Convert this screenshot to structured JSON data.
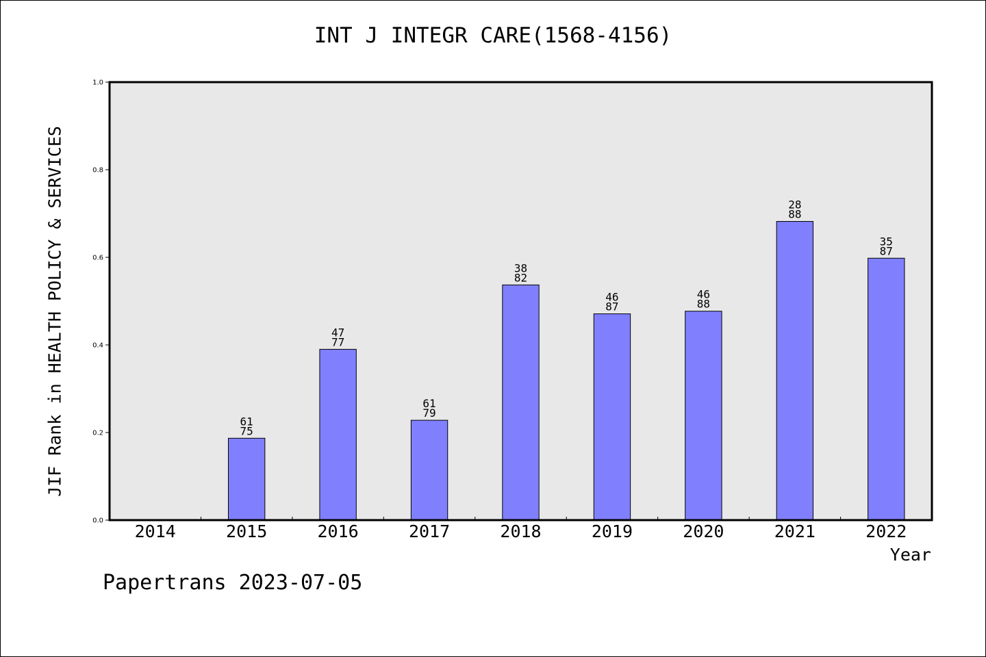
{
  "chart_data": {
    "type": "bar",
    "title": "INT J INTEGR CARE(1568-4156)",
    "xlabel": "Year",
    "ylabel": "JIF Rank in HEALTH POLICY & SERVICES",
    "ylim": [
      0,
      1.0
    ],
    "yticks": [
      "0.0",
      "0.2",
      "0.4",
      "0.6",
      "0.8",
      "1.0"
    ],
    "categories": [
      "2014",
      "2015",
      "2016",
      "2017",
      "2018",
      "2019",
      "2020",
      "2021",
      "2022"
    ],
    "values": [
      null,
      0.187,
      0.39,
      0.228,
      0.537,
      0.471,
      0.477,
      0.682,
      0.598
    ],
    "labels": [
      null,
      [
        "61",
        "75"
      ],
      [
        "47",
        "77"
      ],
      [
        "61",
        "79"
      ],
      [
        "38",
        "82"
      ],
      [
        "46",
        "87"
      ],
      [
        "46",
        "88"
      ],
      [
        "28",
        "88"
      ],
      [
        "35",
        "87"
      ]
    ],
    "grid": false,
    "colors": {
      "bar": "#8080ff",
      "plot_bg": "#e8e8e8"
    }
  },
  "footer": "Papertrans 2023-07-05"
}
